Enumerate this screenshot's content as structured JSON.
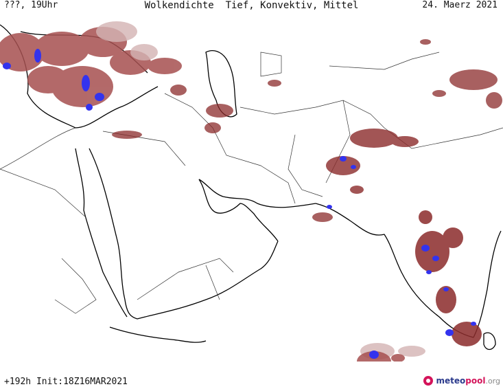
{
  "header": {
    "left": "???, 19Uhr",
    "title": "Wolkendichte  Tief, Konvektiv, Mittel",
    "date": "24. Maerz 2021"
  },
  "footer": {
    "run": "+192h Init:18Z16MAR2021"
  },
  "logo": {
    "part1": "meteo",
    "part2": "pool",
    "part3": ".org"
  },
  "colors": {
    "cloud_dark": "#8b2b2b",
    "cloud_mid": "#a65050",
    "cloud_light": "#d4b4b4",
    "convective": "#3333ee",
    "coast": "#000000",
    "border": "#333333"
  }
}
